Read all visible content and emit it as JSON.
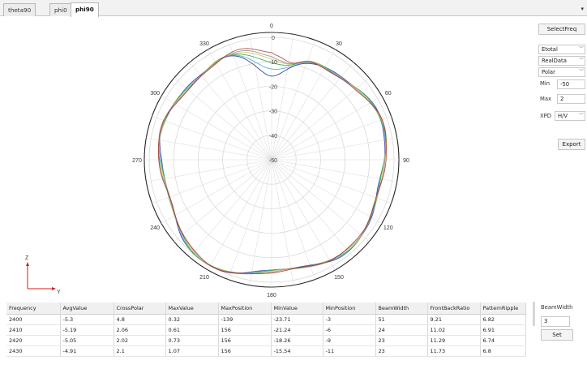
{
  "tabs": [
    {
      "label": "theta90"
    },
    {
      "label": "phi0"
    },
    {
      "label": "phi90"
    }
  ],
  "tab_arrow": "▾",
  "sidebar": {
    "select_freq_label": "SelectFreq",
    "field_select": "Etotal",
    "data_select": "RealData",
    "plot_select": "Polar",
    "min_label": "Min",
    "min_value": "-50",
    "max_label": "Max",
    "max_value": "2",
    "xpd_label": "XPD",
    "xpd_value": "H/V",
    "export_label": "Export",
    "beamwidth_label": "BeamWidth",
    "beamwidth_value": "3",
    "set_label": "Set"
  },
  "axes_indicator": {
    "z": "Z",
    "y": "Y"
  },
  "polar": {
    "angle_labels": [
      "0",
      "30",
      "60",
      "90",
      "120",
      "150",
      "180",
      "210",
      "240",
      "270",
      "300",
      "330"
    ],
    "radial_labels": [
      "0",
      "-10",
      "-20",
      "-30",
      "-40",
      "-50"
    ],
    "rmin": -50,
    "rmax": 2,
    "colors": [
      "#1f2a8c",
      "#3f9fd6",
      "#2e9e3e",
      "#c9c44a",
      "#8a8a8a",
      "#b03030"
    ]
  },
  "table": {
    "columns": [
      "Frequency",
      "AvgValue",
      "CrossPolar",
      "MaxValue",
      "MaxPosition",
      "MinValue",
      "MinPosition",
      "BeamWidth",
      "FrontBackRatio",
      "PatternRipple"
    ],
    "rows": [
      [
        "2400",
        "-5.3",
        "4.8",
        "0.32",
        "-139",
        "-23.71",
        "-3",
        "51",
        "9.21",
        "6.82"
      ],
      [
        "2410",
        "-5.19",
        "2.06",
        "0.61",
        "156",
        "-21.24",
        "-6",
        "24",
        "11.02",
        "6.91"
      ],
      [
        "2420",
        "-5.05",
        "2.02",
        "0.73",
        "156",
        "-18.26",
        "-9",
        "23",
        "11.29",
        "6.74"
      ],
      [
        "2430",
        "-4.91",
        "2.1",
        "1.07",
        "156",
        "-15.54",
        "-11",
        "23",
        "11.73",
        "6.8"
      ]
    ]
  }
}
